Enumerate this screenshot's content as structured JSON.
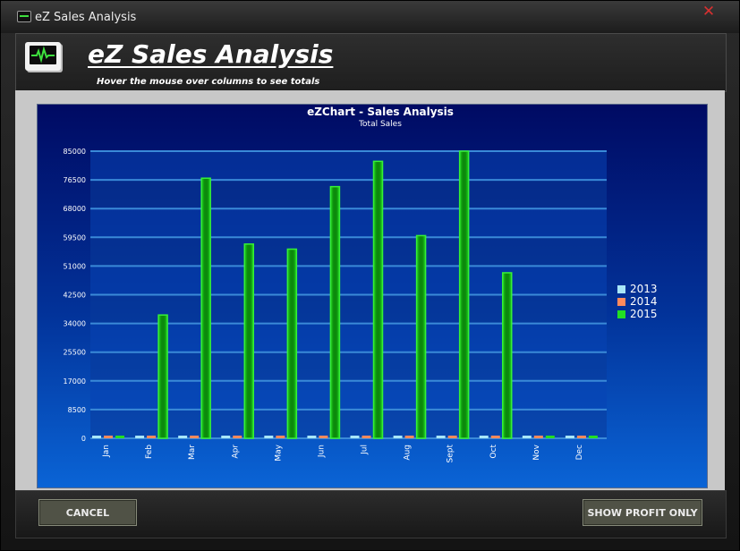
{
  "window": {
    "title": "eZ Sales Analysis",
    "close_glyph": "✕"
  },
  "header": {
    "title": "eZ Sales Analysis",
    "subtitle": "Hover the mouse over columns to see totals",
    "icon": "monitor-pulse-icon"
  },
  "buttons": {
    "cancel": "CANCEL",
    "profit": "SHOW PROFIT ONLY"
  },
  "chart_data": {
    "type": "bar",
    "title": "eZChart - Sales Analysis",
    "subtitle": "Total Sales",
    "categories": [
      "Jan",
      "Feb",
      "Mar",
      "Apr",
      "May",
      "Jun",
      "Jul",
      "Aug",
      "Sept",
      "Oct",
      "Nov",
      "Dec"
    ],
    "y_ticks": [
      "0",
      "8500",
      "17000",
      "25500",
      "34000",
      "42500",
      "51000",
      "59500",
      "68000",
      "76500",
      "85000"
    ],
    "ylim": [
      0,
      85000
    ],
    "legend_position": "right",
    "grid": true,
    "series": [
      {
        "name": "2013",
        "color": "#a8e6f8",
        "values": [
          0,
          0,
          0,
          0,
          0,
          0,
          0,
          0,
          0,
          0,
          0,
          0
        ]
      },
      {
        "name": "2014",
        "color": "#ff8a5c",
        "values": [
          0,
          0,
          0,
          0,
          0,
          0,
          0,
          0,
          0,
          0,
          0,
          0
        ]
      },
      {
        "name": "2015",
        "color": "#22e022",
        "values": [
          0,
          36500,
          77000,
          57500,
          56000,
          74500,
          82000,
          60000,
          85000,
          49000,
          0,
          0
        ]
      }
    ]
  }
}
